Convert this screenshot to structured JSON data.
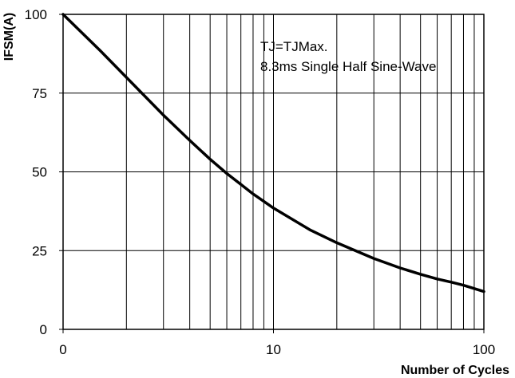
{
  "chart_data": {
    "type": "line",
    "title": "",
    "xlabel": "Number of Cycles",
    "ylabel": "IFSM(A)",
    "x_scale": "log",
    "xlim": [
      1,
      100
    ],
    "ylim": [
      0,
      100
    ],
    "grid": true,
    "x_ticks": [
      {
        "value": 1,
        "label": "0"
      },
      {
        "value": 10,
        "label": "10"
      },
      {
        "value": 100,
        "label": "100"
      }
    ],
    "y_ticks": [
      {
        "value": 0,
        "label": "0"
      },
      {
        "value": 25,
        "label": "25"
      },
      {
        "value": 50,
        "label": "50"
      },
      {
        "value": 75,
        "label": "75"
      },
      {
        "value": 100,
        "label": "100"
      }
    ],
    "annotations": [
      "TJ=TJMax.",
      "8.3ms Single Half Sine-Wave"
    ],
    "series": [
      {
        "color": "#000000",
        "x": [
          1,
          1.5,
          2,
          3,
          4,
          5,
          6,
          7,
          8,
          10,
          15,
          20,
          30,
          40,
          50,
          60,
          70,
          80,
          100
        ],
        "y": [
          100,
          88.5,
          80,
          68,
          60,
          54,
          49.5,
          46,
          43,
          38.5,
          31.5,
          27.5,
          22.5,
          19.5,
          17.5,
          16,
          15,
          14,
          12
        ]
      }
    ]
  }
}
